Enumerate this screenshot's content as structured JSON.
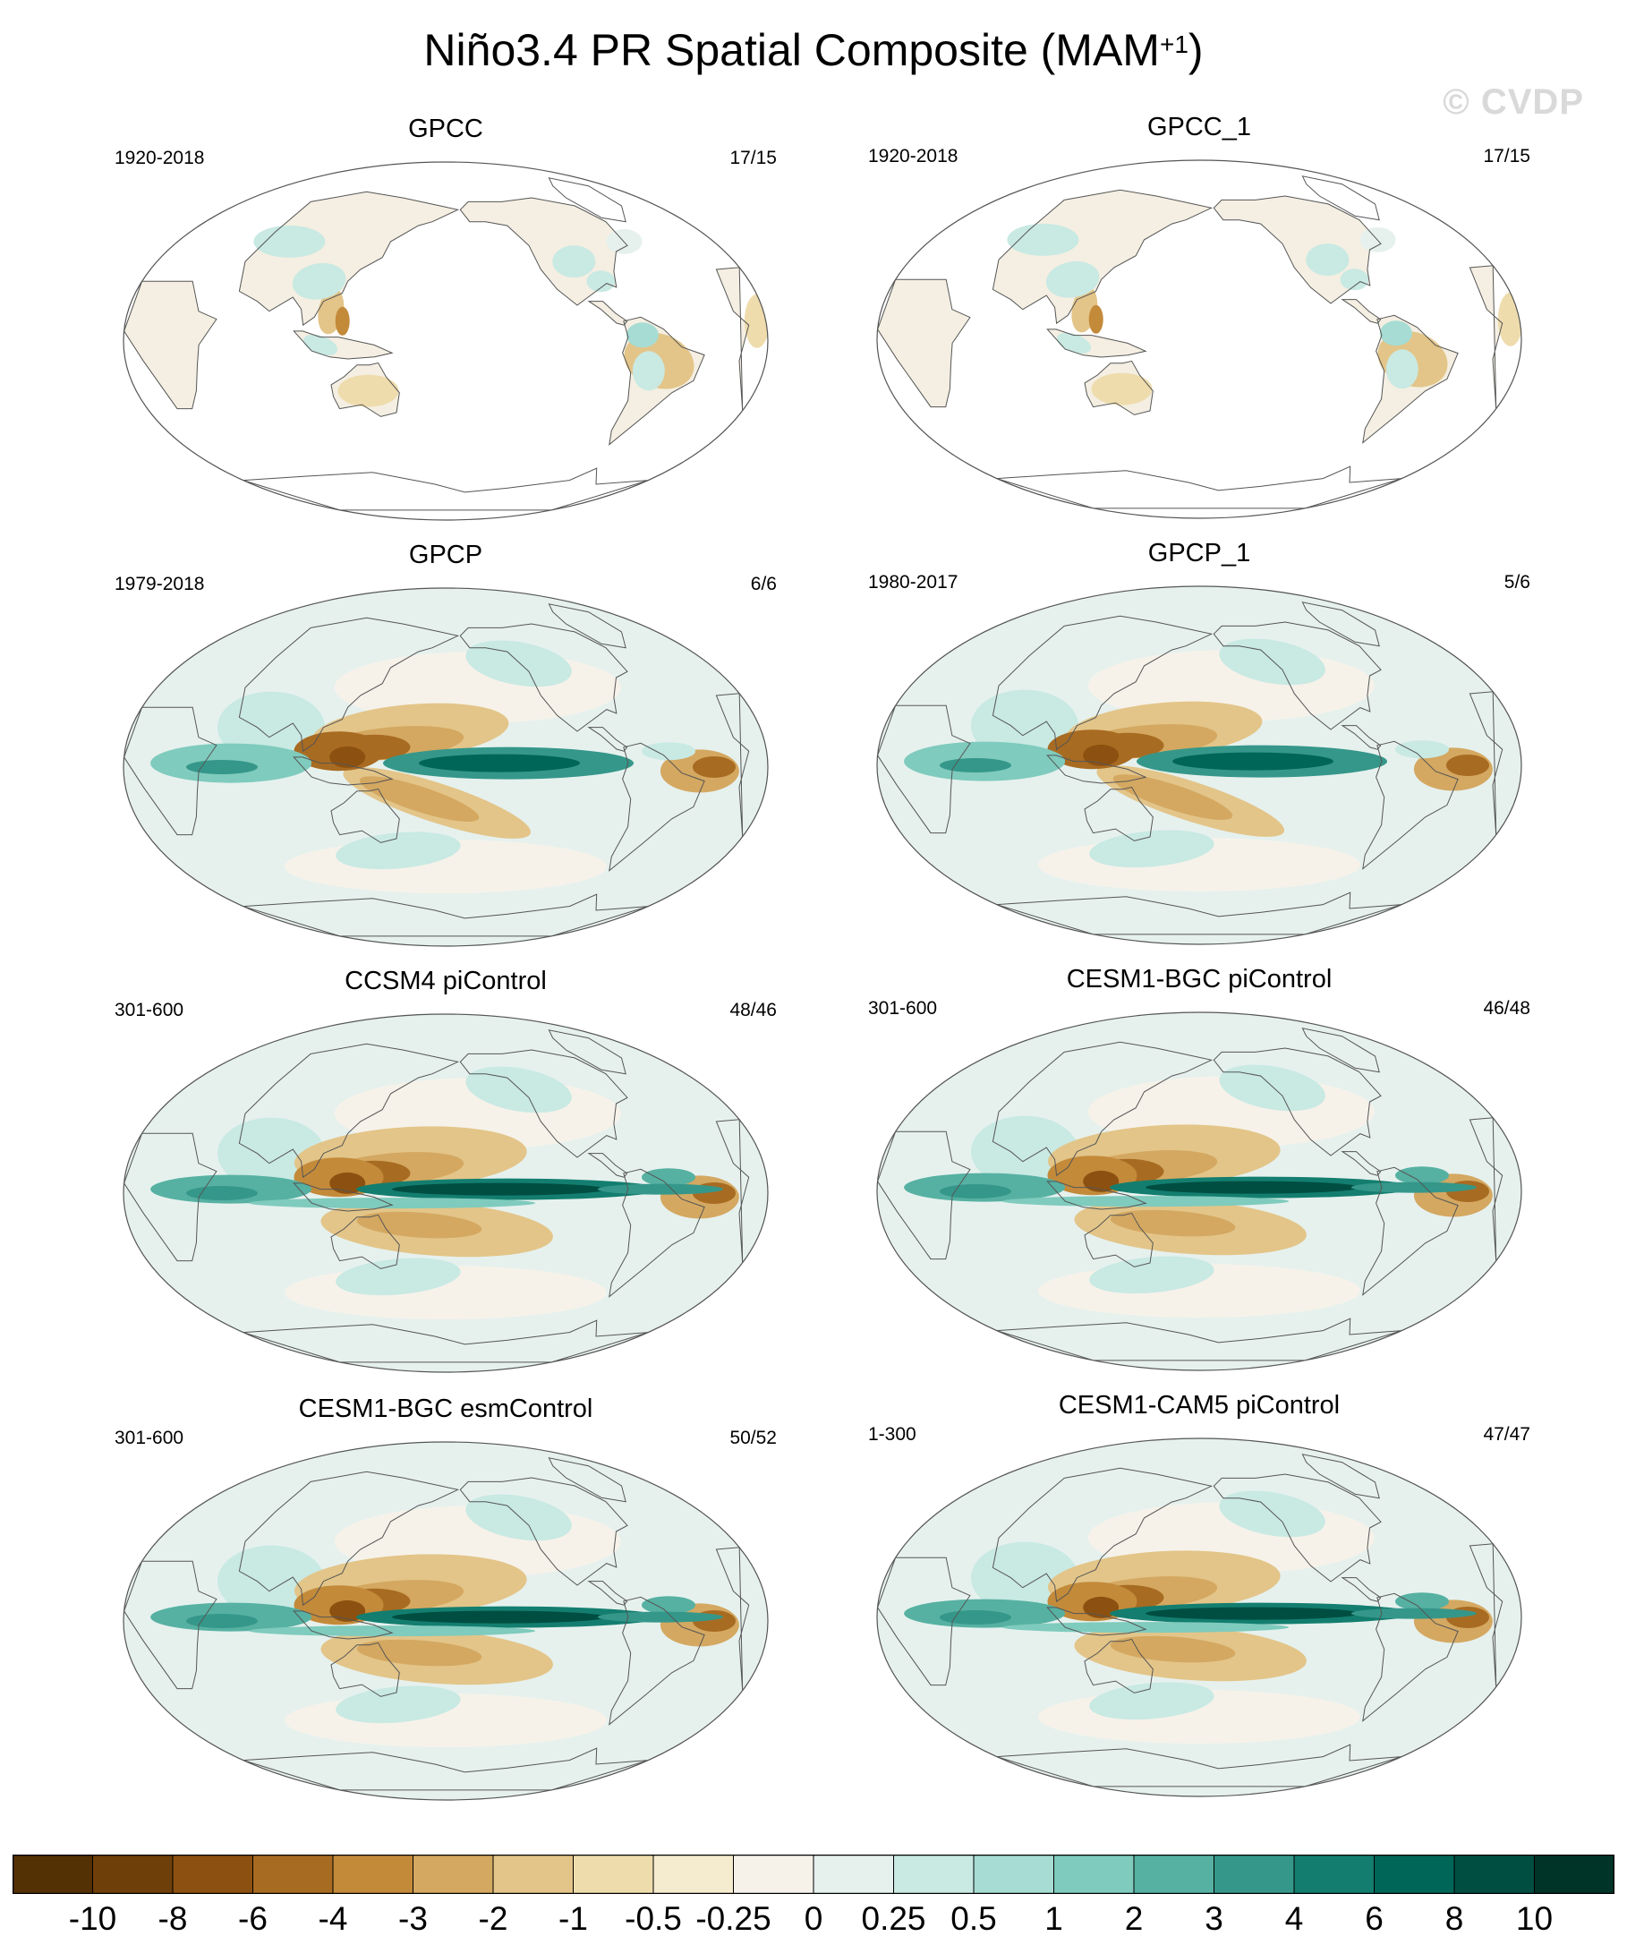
{
  "title": "Niño3.4 PR Spatial Composite (MAM",
  "title_sup": "+1",
  "title_close": ")",
  "watermark": "© CVDP",
  "panels": [
    {
      "title": "GPCC",
      "years": "1920-2018",
      "count": "17/15",
      "pattern": "land"
    },
    {
      "title": "GPCC_1",
      "years": "1920-2018",
      "count": "17/15",
      "pattern": "land"
    },
    {
      "title": "GPCP",
      "years": "1979-2018",
      "count": "6/6",
      "pattern": "obs"
    },
    {
      "title": "GPCP_1",
      "years": "1980-2017",
      "count": "5/6",
      "pattern": "obs"
    },
    {
      "title": "CCSM4 piControl",
      "years": "301-600",
      "count": "48/46",
      "pattern": "model"
    },
    {
      "title": "CESM1-BGC piControl",
      "years": "301-600",
      "count": "46/48",
      "pattern": "model"
    },
    {
      "title": "CESM1-BGC esmControl",
      "years": "301-600",
      "count": "50/52",
      "pattern": "model"
    },
    {
      "title": "CESM1-CAM5 piControl",
      "years": "1-300",
      "count": "47/47",
      "pattern": "model"
    }
  ],
  "colorbar": {
    "labels": [
      "-10",
      "-8",
      "-6",
      "-4",
      "-3",
      "-2",
      "-1",
      "-0.5",
      "-0.25",
      "0",
      "0.25",
      "0.5",
      "1",
      "2",
      "3",
      "4",
      "6",
      "8",
      "10"
    ],
    "colors": [
      "#543005",
      "#6f3f0a",
      "#8c5110",
      "#a86b22",
      "#c38a3a",
      "#d4a861",
      "#e3c589",
      "#efdcad",
      "#f5ebcf",
      "#f6f2ea",
      "#e6f1ee",
      "#c9e9e3",
      "#a6dcd3",
      "#7fcbbd",
      "#56b1a2",
      "#35978a",
      "#137e6f",
      "#006657",
      "#004e42",
      "#003428"
    ]
  }
}
